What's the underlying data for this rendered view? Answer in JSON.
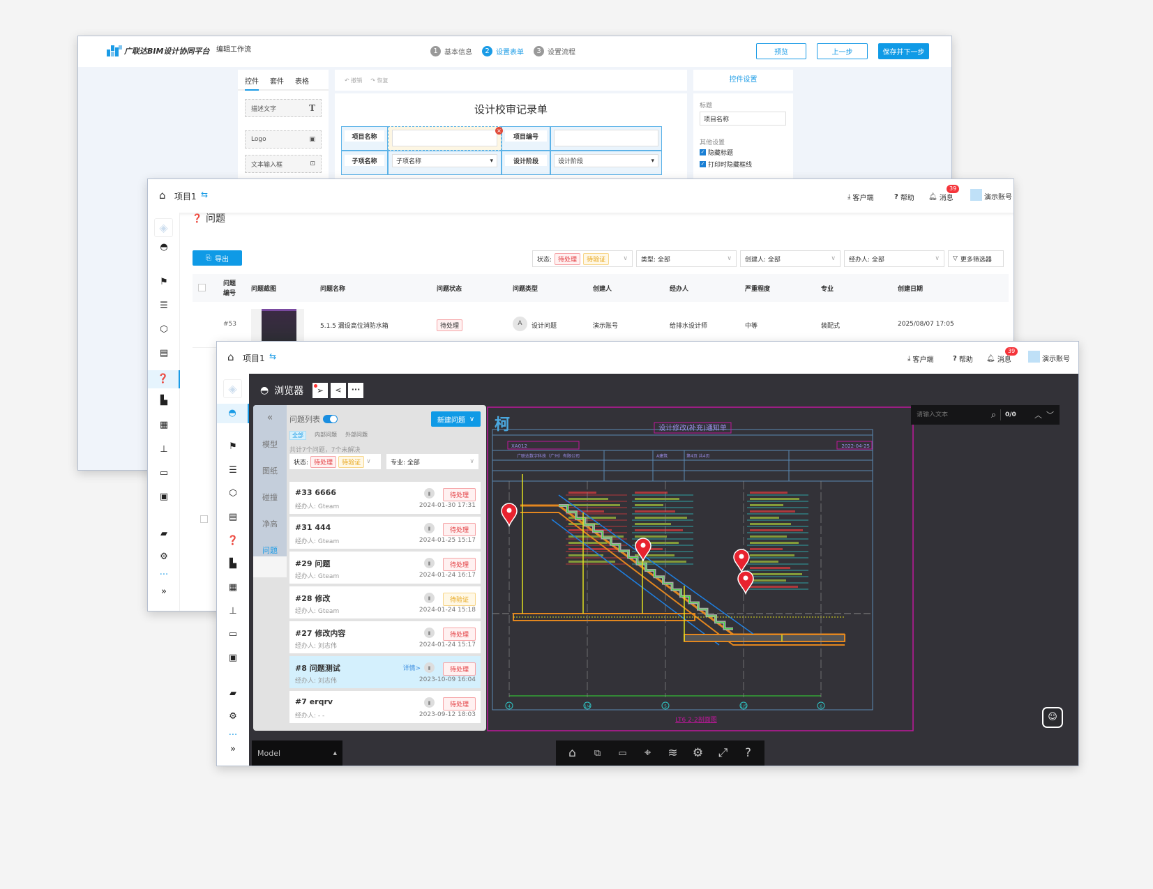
{
  "win1": {
    "logo_text": "广联达BIM设计协同平台",
    "page_title": "编辑工作流",
    "steps": [
      {
        "num": "1",
        "label": "基本信息"
      },
      {
        "num": "2",
        "label": "设置表单",
        "active": true
      },
      {
        "num": "3",
        "label": "设置流程"
      }
    ],
    "buttons": {
      "preview": "预览",
      "prev": "上一步",
      "save_next": "保存并下一步"
    },
    "left_tabs": [
      "控件",
      "套件",
      "表格"
    ],
    "controls": [
      {
        "label": "描述文字",
        "icon": "T"
      },
      {
        "label": "Logo",
        "icon": "image-icon"
      },
      {
        "label": "文本输入框",
        "icon": "text-input-icon"
      }
    ],
    "toolbar": {
      "undo": "撤销",
      "redo": "恢复"
    },
    "form": {
      "title": "设计校审记录单",
      "labels": [
        "项目名称",
        "项目编号",
        "子项名称",
        "设计阶段"
      ],
      "selects": [
        "子项名称",
        "设计阶段"
      ]
    },
    "settings": {
      "header": "控件设置",
      "title_label": "标题",
      "title_value": "项目名称",
      "other_label": "其他设置",
      "checks": [
        "隐藏标题",
        "打印时隐藏框线"
      ]
    }
  },
  "win2": {
    "project": "项目1",
    "header": {
      "client": "客户端",
      "help": "帮助",
      "messages": "消息",
      "badge": "39",
      "user": "演示账号"
    },
    "page_title": "问题",
    "export": "导出",
    "filters": {
      "status_label": "状态:",
      "status_tags": [
        "待处理",
        "待验证"
      ],
      "type": "类型: 全部",
      "creator": "创建人: 全部",
      "handler": "经办人: 全部",
      "more": "更多筛选器"
    },
    "columns": [
      "问题编号",
      "问题截图",
      "问题名称",
      "问题状态",
      "问题类型",
      "创建人",
      "经办人",
      "严重程度",
      "专业",
      "创建日期"
    ],
    "rows": [
      {
        "id": "#53",
        "name": "5.1.5 漏设高位消防水箱",
        "status": "待处理",
        "type_avatar": "A",
        "type": "设计问题",
        "creator": "演示账号",
        "handler": "给排水设计师",
        "severity": "中等",
        "discipline": "装配式",
        "date": "2025/08/07 17:05"
      }
    ]
  },
  "win3": {
    "project": "项目1",
    "header": {
      "client": "客户端",
      "help": "帮助",
      "messages": "消息",
      "badge": "39",
      "user": "演示账号"
    },
    "viewer_title": "浏览器",
    "side_tabs": [
      "模型",
      "图纸",
      "碰撞",
      "净高",
      "问题"
    ],
    "panel": {
      "title": "问题列表",
      "toggle_on": true,
      "new_button": "新建问题",
      "scopes": [
        "全部",
        "内部问题",
        "外部问题"
      ],
      "summary": "共计7个问题，7个未解决",
      "status_label": "状态:",
      "status_tags": [
        "待处理",
        "待验证"
      ],
      "discipline": "专业: 全部",
      "detail_link": "详情>",
      "items": [
        {
          "title": "#33 6666",
          "handler": "经办人: Gteam",
          "status": "待处理",
          "kind": "r",
          "date": "2024-01-30 17:31"
        },
        {
          "title": "#31 444",
          "handler": "经办人: Gteam",
          "status": "待处理",
          "kind": "r",
          "date": "2024-01-25 15:17"
        },
        {
          "title": "#29 问题",
          "handler": "经办人: Gteam",
          "status": "待处理",
          "kind": "r",
          "date": "2024-01-24 16:17"
        },
        {
          "title": "#28 修改",
          "handler": "经办人: Gteam",
          "status": "待验证",
          "kind": "y",
          "date": "2024-01-24 15:18"
        },
        {
          "title": "#27 修改内容",
          "handler": "经办人: 刘志伟",
          "status": "待处理",
          "kind": "r",
          "date": "2024-01-24 15:17"
        },
        {
          "title": "#8 问题测试",
          "handler": "经办人: 刘志伟",
          "status": "待处理",
          "kind": "r",
          "date": "2023-10-09 16:04",
          "selected": true
        },
        {
          "title": "#7 erqrv",
          "handler": "经办人: - -",
          "status": "待处理",
          "kind": "r",
          "date": "2023-09-12 18:03"
        }
      ]
    },
    "search": {
      "placeholder": "请输入文本",
      "count": "0/0"
    },
    "model_select": "Model",
    "drawing": {
      "title": "设计修改(补充)通知单",
      "serial": "XA012",
      "date": "2022-04-25",
      "company": "广联达数字科技（广州）有限公司",
      "discipline": "A建筑",
      "pages": "第4页 共4页",
      "section_title": "LT6  2-2剖面图",
      "axes": [
        "4",
        "1/4",
        "5",
        "1/5",
        "6"
      ]
    },
    "bottom_toolbar": [
      "home-icon",
      "zoom-box-icon",
      "measure-icon",
      "pin-icon",
      "layers-icon",
      "settings-icon",
      "fullscreen-icon",
      "help-icon"
    ]
  },
  "colors": {
    "accent": "#0f9ae6",
    "viewer_bg": "#333238",
    "danger": "#e23b3f",
    "warning": "#e6a417",
    "cad_magenta": "#c0179c"
  }
}
